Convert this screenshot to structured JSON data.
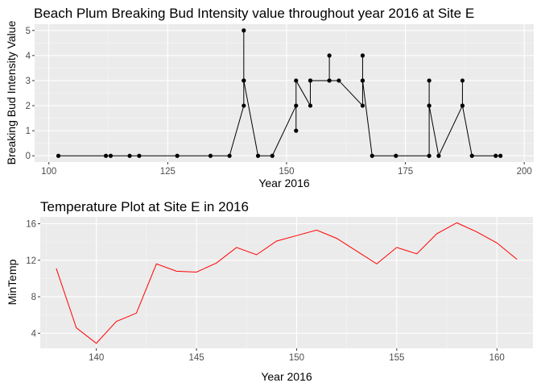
{
  "chart_data": [
    {
      "type": "line",
      "title": "Beach Plum Breaking Bud Intensity value throughout year 2016 at Site E",
      "xlabel": "Year 2016",
      "ylabel": "Breaking Bud Intensity Value",
      "xlim": [
        97,
        202
      ],
      "ylim": [
        -0.25,
        5.25
      ],
      "x_ticks": [
        100,
        125,
        150,
        175,
        200
      ],
      "y_ticks": [
        0,
        1,
        2,
        3,
        4,
        5
      ],
      "grid": true,
      "markers": true,
      "line_color": "#000000",
      "background": "#ebebeb",
      "series": [
        {
          "x": [
            102,
            112,
            113,
            117,
            119,
            127,
            134,
            138,
            141,
            141,
            141,
            141,
            144,
            147,
            152,
            152,
            152,
            155,
            155,
            155,
            159,
            159,
            159,
            161,
            166,
            166,
            166,
            166,
            168,
            173,
            180,
            180,
            180,
            180,
            182,
            187,
            187,
            187,
            189,
            194,
            195
          ],
          "values": [
            0,
            0,
            0,
            0,
            0,
            0,
            0,
            0,
            2,
            3,
            5,
            3,
            0,
            0,
            2,
            1,
            3,
            2,
            3,
            3,
            3,
            4,
            3,
            3,
            2,
            3,
            4,
            3,
            0,
            0,
            0,
            2,
            3,
            2,
            0,
            2,
            3,
            2,
            0,
            0,
            0
          ]
        }
      ]
    },
    {
      "type": "line",
      "title": "Temperature Plot at Site E in 2016",
      "xlabel": "Year 2016",
      "ylabel": "MinTemp",
      "xlim": [
        137.2,
        161.8
      ],
      "ylim": [
        2.35,
        16.75
      ],
      "x_ticks": [
        140,
        145,
        150,
        155,
        160
      ],
      "y_ticks": [
        4,
        8,
        12,
        16
      ],
      "grid": true,
      "markers": false,
      "line_color": "#ff0000",
      "background": "#ebebeb",
      "series": [
        {
          "x": [
            138,
            139,
            140,
            141,
            142,
            143,
            144,
            145,
            146,
            147,
            148,
            149,
            150,
            151,
            152,
            153,
            154,
            155,
            156,
            157,
            158,
            159,
            160,
            161
          ],
          "values": [
            11.1,
            4.6,
            2.9,
            5.3,
            6.2,
            11.6,
            10.8,
            10.7,
            11.7,
            13.4,
            12.6,
            14.1,
            14.7,
            15.3,
            14.4,
            13.0,
            11.6,
            13.4,
            12.7,
            14.9,
            16.1,
            15.1,
            13.9,
            12.1
          ]
        }
      ]
    }
  ]
}
